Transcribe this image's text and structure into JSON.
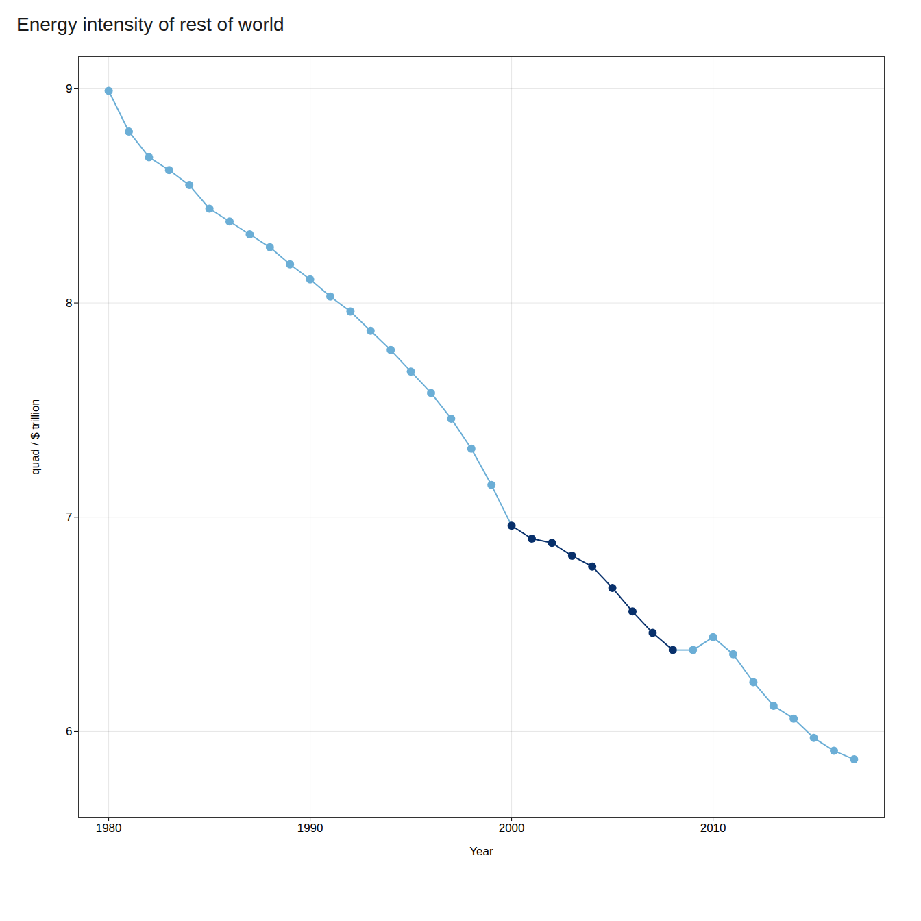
{
  "chart_data": {
    "type": "line",
    "title": "Energy intensity of rest of world",
    "xlabel": "Year",
    "ylabel": "quad / $ trillion",
    "x": [
      1980,
      1981,
      1982,
      1983,
      1984,
      1985,
      1986,
      1987,
      1988,
      1989,
      1990,
      1991,
      1992,
      1993,
      1994,
      1995,
      1996,
      1997,
      1998,
      1999,
      2000,
      2001,
      2002,
      2003,
      2004,
      2005,
      2006,
      2007,
      2008,
      2009,
      2010,
      2011,
      2012,
      2013,
      2014,
      2015,
      2016,
      2017
    ],
    "values": [
      8.99,
      8.8,
      8.68,
      8.62,
      8.55,
      8.44,
      8.38,
      8.32,
      8.26,
      8.18,
      8.11,
      8.03,
      7.96,
      7.87,
      7.78,
      7.68,
      7.58,
      7.46,
      7.32,
      7.15,
      6.96,
      6.9,
      6.88,
      6.82,
      6.77,
      6.67,
      6.56,
      6.46,
      6.38,
      6.38,
      6.44,
      6.36,
      6.23,
      6.12,
      6.06,
      5.97,
      5.91,
      5.87
    ],
    "color": "#6baed6",
    "colors": [
      "#6baed6",
      "#6baed6",
      "#6baed6",
      "#6baed6",
      "#6baed6",
      "#6baed6",
      "#6baed6",
      "#6baed6",
      "#6baed6",
      "#6baed6",
      "#6baed6",
      "#6baed6",
      "#6baed6",
      "#6baed6",
      "#6baed6",
      "#6baed6",
      "#6baed6",
      "#6baed6",
      "#6baed6",
      "#6baed6",
      "#08306b",
      "#08306b",
      "#08306b",
      "#08306b",
      "#08306b",
      "#08306b",
      "#08306b",
      "#08306b",
      "#08306b",
      "#6baed6",
      "#6baed6",
      "#6baed6",
      "#6baed6",
      "#6baed6",
      "#6baed6",
      "#6baed6",
      "#6baed6",
      "#6baed6"
    ],
    "marker": "circle",
    "xlim": [
      1978.5,
      2018.5
    ],
    "xticks": [
      1980,
      1990,
      2000,
      2010
    ],
    "ylim": [
      5.6,
      9.15
    ],
    "yticks": [
      6,
      7,
      8,
      9
    ],
    "grid": true
  }
}
